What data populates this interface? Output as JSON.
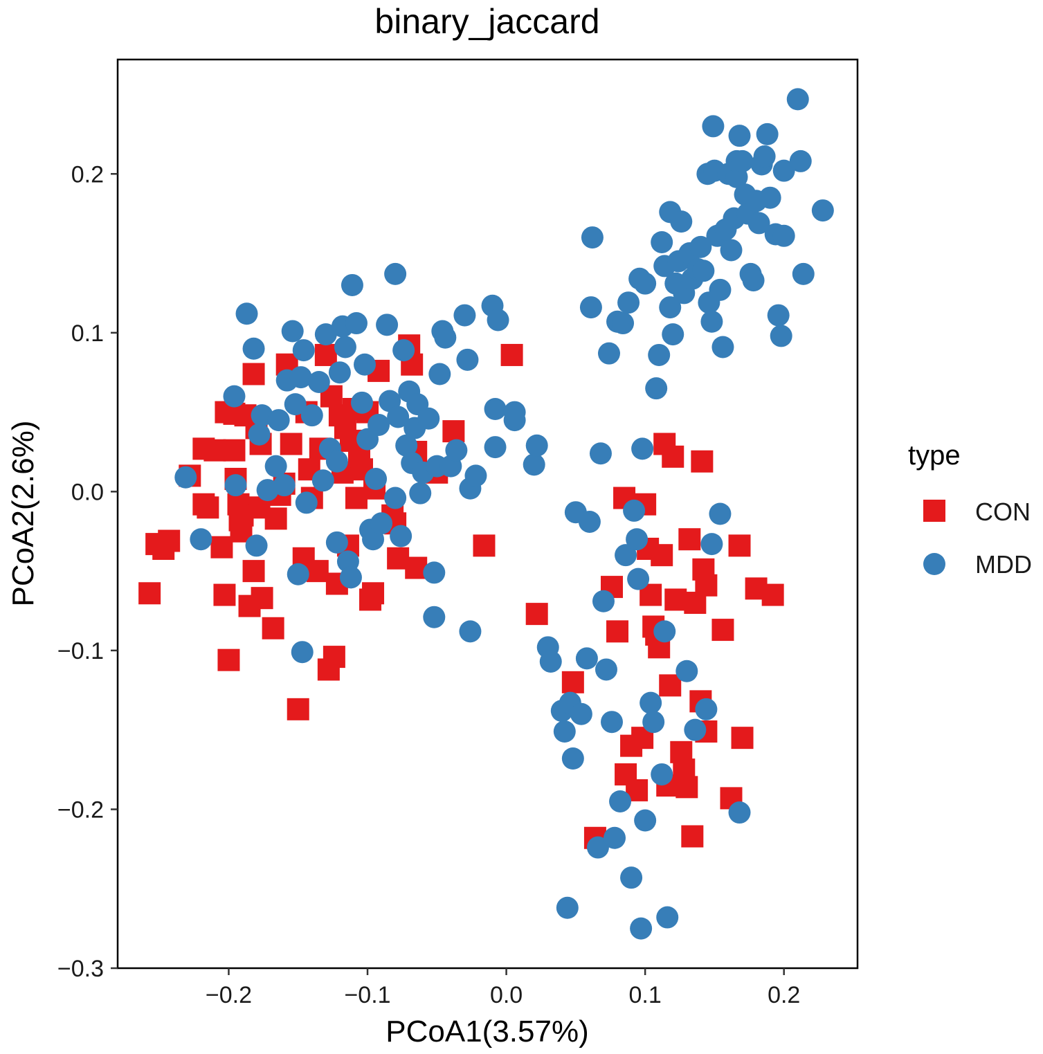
{
  "chart_data": {
    "type": "scatter",
    "title": "binary_jaccard",
    "xlabel": "PCoA1(3.57%)",
    "ylabel": "PCoA2(2.6%)",
    "xlim": [
      -0.28,
      0.253
    ],
    "ylim": [
      -0.3,
      0.272
    ],
    "xticks": [
      -0.2,
      -0.1,
      0.0,
      0.1,
      0.2
    ],
    "yticks": [
      -0.3,
      -0.2,
      -0.1,
      0.0,
      0.1,
      0.2
    ],
    "xtick_labels": [
      "−0.2",
      "−0.1",
      "0.0",
      "0.1",
      "0.2"
    ],
    "ytick_labels": [
      "−0.3",
      "−0.2",
      "−0.1",
      "0.0",
      "0.1",
      "0.2"
    ],
    "grid": false,
    "legend": {
      "title": "type",
      "position": "right",
      "entries": [
        {
          "label": "CON",
          "shape": "square",
          "color": "#E41A1C"
        },
        {
          "label": "MDD",
          "shape": "circle",
          "color": "#377EB8"
        }
      ]
    },
    "series": [
      {
        "name": "CON",
        "shape": "square",
        "color": "#E41A1C",
        "points": [
          [
            -0.257,
            -0.064
          ],
          [
            -0.252,
            -0.033
          ],
          [
            -0.247,
            -0.036
          ],
          [
            -0.243,
            -0.031
          ],
          [
            -0.228,
            0.01
          ],
          [
            -0.218,
            0.027
          ],
          [
            -0.218,
            -0.008
          ],
          [
            -0.215,
            -0.01
          ],
          [
            -0.21,
            0.026
          ],
          [
            -0.205,
            -0.035
          ],
          [
            -0.203,
            -0.065
          ],
          [
            -0.202,
            0.05
          ],
          [
            -0.2,
            -0.106
          ],
          [
            -0.196,
            0.026
          ],
          [
            -0.196,
            0.049
          ],
          [
            -0.195,
            0.008
          ],
          [
            -0.193,
            -0.008
          ],
          [
            -0.192,
            -0.018
          ],
          [
            -0.191,
            -0.025
          ],
          [
            -0.19,
            -0.015
          ],
          [
            -0.188,
            0.048
          ],
          [
            -0.185,
            -0.072
          ],
          [
            -0.182,
            -0.05
          ],
          [
            -0.182,
            0.074
          ],
          [
            -0.18,
            0.04
          ],
          [
            -0.178,
            -0.01
          ],
          [
            -0.177,
            0.03
          ],
          [
            -0.176,
            -0.067
          ],
          [
            -0.168,
            -0.086
          ],
          [
            -0.166,
            -0.017
          ],
          [
            -0.163,
            -0.002
          ],
          [
            -0.16,
            0.005
          ],
          [
            -0.158,
            0.08
          ],
          [
            -0.155,
            0.03
          ],
          [
            -0.15,
            -0.137
          ],
          [
            -0.146,
            -0.042
          ],
          [
            -0.144,
            0.05
          ],
          [
            -0.142,
            0.014
          ],
          [
            -0.14,
            -0.004
          ],
          [
            -0.136,
            -0.05
          ],
          [
            -0.134,
            0.027
          ],
          [
            -0.13,
            0.086
          ],
          [
            -0.128,
            -0.112
          ],
          [
            -0.126,
            0.06
          ],
          [
            -0.124,
            -0.104
          ],
          [
            -0.122,
            -0.058
          ],
          [
            -0.12,
            0.048
          ],
          [
            -0.118,
            0.012
          ],
          [
            -0.116,
            0.04
          ],
          [
            -0.114,
            -0.034
          ],
          [
            -0.112,
            0.032
          ],
          [
            -0.11,
            0.052
          ],
          [
            -0.108,
            -0.004
          ],
          [
            -0.106,
            0.022
          ],
          [
            -0.104,
            0.014
          ],
          [
            -0.1,
            0.05
          ],
          [
            -0.098,
            -0.068
          ],
          [
            -0.096,
            -0.064
          ],
          [
            -0.095,
            0.002
          ],
          [
            -0.092,
            0.076
          ],
          [
            -0.082,
            -0.015
          ],
          [
            -0.08,
            -0.02
          ],
          [
            -0.078,
            -0.042
          ],
          [
            -0.07,
            0.092
          ],
          [
            -0.068,
            0.08
          ],
          [
            -0.065,
            -0.048
          ],
          [
            -0.065,
            0.025
          ],
          [
            -0.05,
            0.012
          ],
          [
            -0.038,
            0.038
          ],
          [
            -0.016,
            -0.034
          ],
          [
            0.004,
            0.086
          ],
          [
            0.022,
            -0.077
          ],
          [
            0.048,
            -0.12
          ],
          [
            0.064,
            -0.218
          ],
          [
            0.076,
            -0.06
          ],
          [
            0.08,
            -0.088
          ],
          [
            0.085,
            -0.004
          ],
          [
            0.086,
            -0.178
          ],
          [
            0.09,
            -0.16
          ],
          [
            0.094,
            -0.188
          ],
          [
            0.098,
            -0.155
          ],
          [
            0.1,
            -0.008
          ],
          [
            0.102,
            -0.036
          ],
          [
            0.104,
            -0.065
          ],
          [
            0.106,
            -0.085
          ],
          [
            0.108,
            -0.09
          ],
          [
            0.11,
            -0.098
          ],
          [
            0.112,
            -0.04
          ],
          [
            0.114,
            0.03
          ],
          [
            0.116,
            -0.185
          ],
          [
            0.118,
            -0.122
          ],
          [
            0.12,
            0.022
          ],
          [
            0.122,
            -0.068
          ],
          [
            0.126,
            -0.164
          ],
          [
            0.128,
            -0.175
          ],
          [
            0.13,
            -0.186
          ],
          [
            0.132,
            -0.03
          ],
          [
            0.134,
            -0.217
          ],
          [
            0.136,
            -0.07
          ],
          [
            0.14,
            -0.132
          ],
          [
            0.141,
            0.019
          ],
          [
            0.142,
            -0.049
          ],
          [
            0.144,
            -0.059
          ],
          [
            0.144,
            -0.151
          ],
          [
            0.156,
            -0.087
          ],
          [
            0.162,
            -0.193
          ],
          [
            0.168,
            -0.034
          ],
          [
            0.17,
            -0.155
          ],
          [
            0.18,
            -0.061
          ],
          [
            0.192,
            -0.065
          ]
        ]
      },
      {
        "name": "MDD",
        "shape": "circle",
        "color": "#377EB8",
        "points": [
          [
            -0.231,
            0.009
          ],
          [
            -0.22,
            -0.03
          ],
          [
            -0.196,
            0.06
          ],
          [
            -0.195,
            0.004
          ],
          [
            -0.187,
            0.112
          ],
          [
            -0.182,
            0.09
          ],
          [
            -0.18,
            -0.034
          ],
          [
            -0.178,
            0.036
          ],
          [
            -0.176,
            0.048
          ],
          [
            -0.172,
            0.001
          ],
          [
            -0.166,
            0.016
          ],
          [
            -0.164,
            0.045
          ],
          [
            -0.16,
            0.004
          ],
          [
            -0.158,
            0.07
          ],
          [
            -0.154,
            0.101
          ],
          [
            -0.152,
            0.055
          ],
          [
            -0.15,
            -0.052
          ],
          [
            -0.148,
            0.072
          ],
          [
            -0.147,
            -0.101
          ],
          [
            -0.146,
            0.089
          ],
          [
            -0.144,
            -0.007
          ],
          [
            -0.14,
            0.048
          ],
          [
            -0.135,
            0.069
          ],
          [
            -0.132,
            0.007
          ],
          [
            -0.13,
            0.099
          ],
          [
            -0.127,
            0.027
          ],
          [
            -0.122,
            -0.032
          ],
          [
            -0.122,
            0.019
          ],
          [
            -0.12,
            0.075
          ],
          [
            -0.118,
            0.104
          ],
          [
            -0.116,
            0.091
          ],
          [
            -0.114,
            -0.044
          ],
          [
            -0.112,
            -0.054
          ],
          [
            -0.111,
            0.13
          ],
          [
            -0.108,
            0.106
          ],
          [
            -0.104,
            0.056
          ],
          [
            -0.102,
            0.08
          ],
          [
            -0.1,
            0.033
          ],
          [
            -0.098,
            -0.024
          ],
          [
            -0.096,
            -0.03
          ],
          [
            -0.094,
            0.008
          ],
          [
            -0.092,
            0.042
          ],
          [
            -0.09,
            -0.02
          ],
          [
            -0.086,
            0.105
          ],
          [
            -0.084,
            0.057
          ],
          [
            -0.08,
            0.137
          ],
          [
            -0.08,
            -0.004
          ],
          [
            -0.078,
            0.047
          ],
          [
            -0.076,
            -0.028
          ],
          [
            -0.074,
            0.089
          ],
          [
            -0.072,
            0.029
          ],
          [
            -0.07,
            0.063
          ],
          [
            -0.068,
            0.018
          ],
          [
            -0.066,
            0.04
          ],
          [
            -0.064,
            0.055
          ],
          [
            -0.062,
            -0.001
          ],
          [
            -0.06,
            0.012
          ],
          [
            -0.056,
            0.046
          ],
          [
            -0.052,
            -0.051
          ],
          [
            -0.05,
            0.016
          ],
          [
            -0.052,
            -0.079
          ],
          [
            -0.048,
            0.074
          ],
          [
            -0.046,
            0.101
          ],
          [
            -0.044,
            0.097
          ],
          [
            -0.04,
            0.016
          ],
          [
            -0.036,
            0.026
          ],
          [
            -0.03,
            0.111
          ],
          [
            -0.028,
            0.083
          ],
          [
            -0.026,
            0.002
          ],
          [
            -0.026,
            -0.088
          ],
          [
            -0.022,
            0.01
          ],
          [
            -0.01,
            0.117
          ],
          [
            -0.008,
            0.052
          ],
          [
            -0.006,
            0.108
          ],
          [
            -0.008,
            0.028
          ],
          [
            0.006,
            0.05
          ],
          [
            0.006,
            0.045
          ],
          [
            0.02,
            0.017
          ],
          [
            0.022,
            0.029
          ],
          [
            0.03,
            -0.098
          ],
          [
            0.032,
            -0.107
          ],
          [
            0.04,
            -0.138
          ],
          [
            0.042,
            -0.151
          ],
          [
            0.044,
            -0.262
          ],
          [
            0.046,
            -0.133
          ],
          [
            0.048,
            -0.168
          ],
          [
            0.05,
            -0.013
          ],
          [
            0.054,
            -0.14
          ],
          [
            0.058,
            -0.105
          ],
          [
            0.06,
            -0.019
          ],
          [
            0.061,
            0.116
          ],
          [
            0.062,
            0.16
          ],
          [
            0.066,
            -0.224
          ],
          [
            0.068,
            0.024
          ],
          [
            0.07,
            -0.069
          ],
          [
            0.072,
            -0.112
          ],
          [
            0.074,
            0.087
          ],
          [
            0.076,
            -0.145
          ],
          [
            0.078,
            -0.218
          ],
          [
            0.08,
            0.107
          ],
          [
            0.082,
            -0.195
          ],
          [
            0.084,
            0.106
          ],
          [
            0.086,
            -0.04
          ],
          [
            0.088,
            0.119
          ],
          [
            0.09,
            -0.243
          ],
          [
            0.092,
            -0.012
          ],
          [
            0.094,
            -0.03
          ],
          [
            0.095,
            -0.055
          ],
          [
            0.096,
            0.134
          ],
          [
            0.097,
            -0.275
          ],
          [
            0.098,
            0.027
          ],
          [
            0.1,
            -0.207
          ],
          [
            0.1,
            0.131
          ],
          [
            0.104,
            -0.133
          ],
          [
            0.106,
            -0.145
          ],
          [
            0.108,
            0.065
          ],
          [
            0.11,
            0.086
          ],
          [
            0.112,
            -0.178
          ],
          [
            0.112,
            0.157
          ],
          [
            0.114,
            0.142
          ],
          [
            0.114,
            -0.088
          ],
          [
            0.116,
            -0.268
          ],
          [
            0.118,
            0.176
          ],
          [
            0.118,
            0.116
          ],
          [
            0.12,
            0.099
          ],
          [
            0.122,
            0.131
          ],
          [
            0.124,
            0.145
          ],
          [
            0.126,
            0.17
          ],
          [
            0.128,
            0.125
          ],
          [
            0.13,
            -0.113
          ],
          [
            0.132,
            0.15
          ],
          [
            0.134,
            0.134
          ],
          [
            0.136,
            -0.15
          ],
          [
            0.138,
            0.14
          ],
          [
            0.14,
            0.154
          ],
          [
            0.142,
            0.139
          ],
          [
            0.144,
            -0.137
          ],
          [
            0.145,
            0.2
          ],
          [
            0.146,
            0.119
          ],
          [
            0.148,
            0.107
          ],
          [
            0.148,
            -0.033
          ],
          [
            0.149,
            0.23
          ],
          [
            0.15,
            0.202
          ],
          [
            0.152,
            0.161
          ],
          [
            0.154,
            -0.014
          ],
          [
            0.154,
            0.127
          ],
          [
            0.156,
            0.091
          ],
          [
            0.158,
            0.165
          ],
          [
            0.16,
            0.2
          ],
          [
            0.162,
            0.152
          ],
          [
            0.164,
            0.172
          ],
          [
            0.166,
            0.198
          ],
          [
            0.166,
            0.208
          ],
          [
            0.168,
            0.224
          ],
          [
            0.168,
            -0.202
          ],
          [
            0.17,
            0.208
          ],
          [
            0.172,
            0.187
          ],
          [
            0.174,
            0.175
          ],
          [
            0.176,
            0.137
          ],
          [
            0.178,
            0.133
          ],
          [
            0.18,
            0.183
          ],
          [
            0.182,
            0.169
          ],
          [
            0.184,
            0.206
          ],
          [
            0.186,
            0.211
          ],
          [
            0.188,
            0.225
          ],
          [
            0.19,
            0.185
          ],
          [
            0.194,
            0.162
          ],
          [
            0.196,
            0.111
          ],
          [
            0.198,
            0.098
          ],
          [
            0.2,
            0.161
          ],
          [
            0.2,
            0.202
          ],
          [
            0.21,
            0.247
          ],
          [
            0.212,
            0.208
          ],
          [
            0.214,
            0.137
          ],
          [
            0.228,
            0.177
          ]
        ]
      }
    ]
  }
}
